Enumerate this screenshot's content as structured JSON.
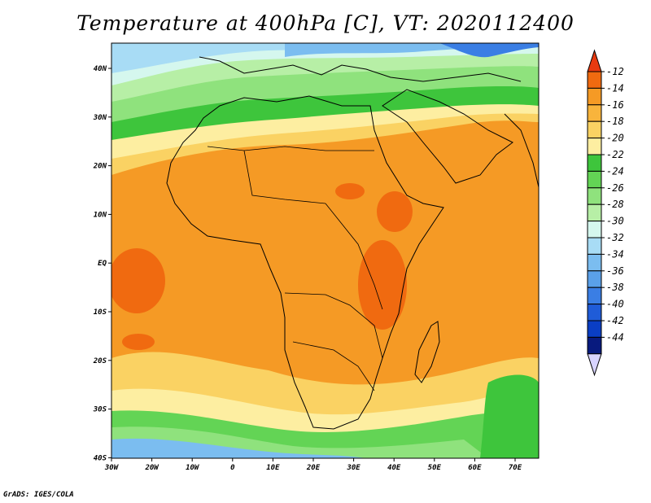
{
  "figure": {
    "title": "Temperature at 400hPa [C], VT: 2020112400",
    "credit": "GrADS: IGES/COLA"
  },
  "map": {
    "variable": "Temperature",
    "level": "400hPa",
    "units": "C",
    "valid_time": "2020112400",
    "lon_range": [
      -30,
      75
    ],
    "lat_range": [
      -40,
      45
    ],
    "x_ticks": [
      "30W",
      "20W",
      "10W",
      "0",
      "10E",
      "20E",
      "30E",
      "40E",
      "50E",
      "60E",
      "70E"
    ],
    "y_ticks": [
      "40N",
      "30N",
      "20N",
      "10N",
      "EQ",
      "10S",
      "20S",
      "30S",
      "40S"
    ]
  },
  "colorbar": {
    "labels": [
      "-12",
      "-14",
      "-16",
      "-18",
      "-20",
      "-22",
      "-24",
      "-26",
      "-28",
      "-30",
      "-32",
      "-34",
      "-36",
      "-38",
      "-40",
      "-42",
      "-44"
    ],
    "colors": [
      "#e83a10",
      "#f06a10",
      "#f59a25",
      "#f8b43c",
      "#fad263",
      "#fdeea1",
      "#3ec53c",
      "#63d455",
      "#8fe27d",
      "#b7efa6",
      "#d5f7ee",
      "#a8dcf5",
      "#7bbdf0",
      "#5aa0e9",
      "#3a7ee4",
      "#1f5cd8",
      "#0a3ec4",
      "#081a7e",
      "#d8d4ff"
    ]
  }
}
